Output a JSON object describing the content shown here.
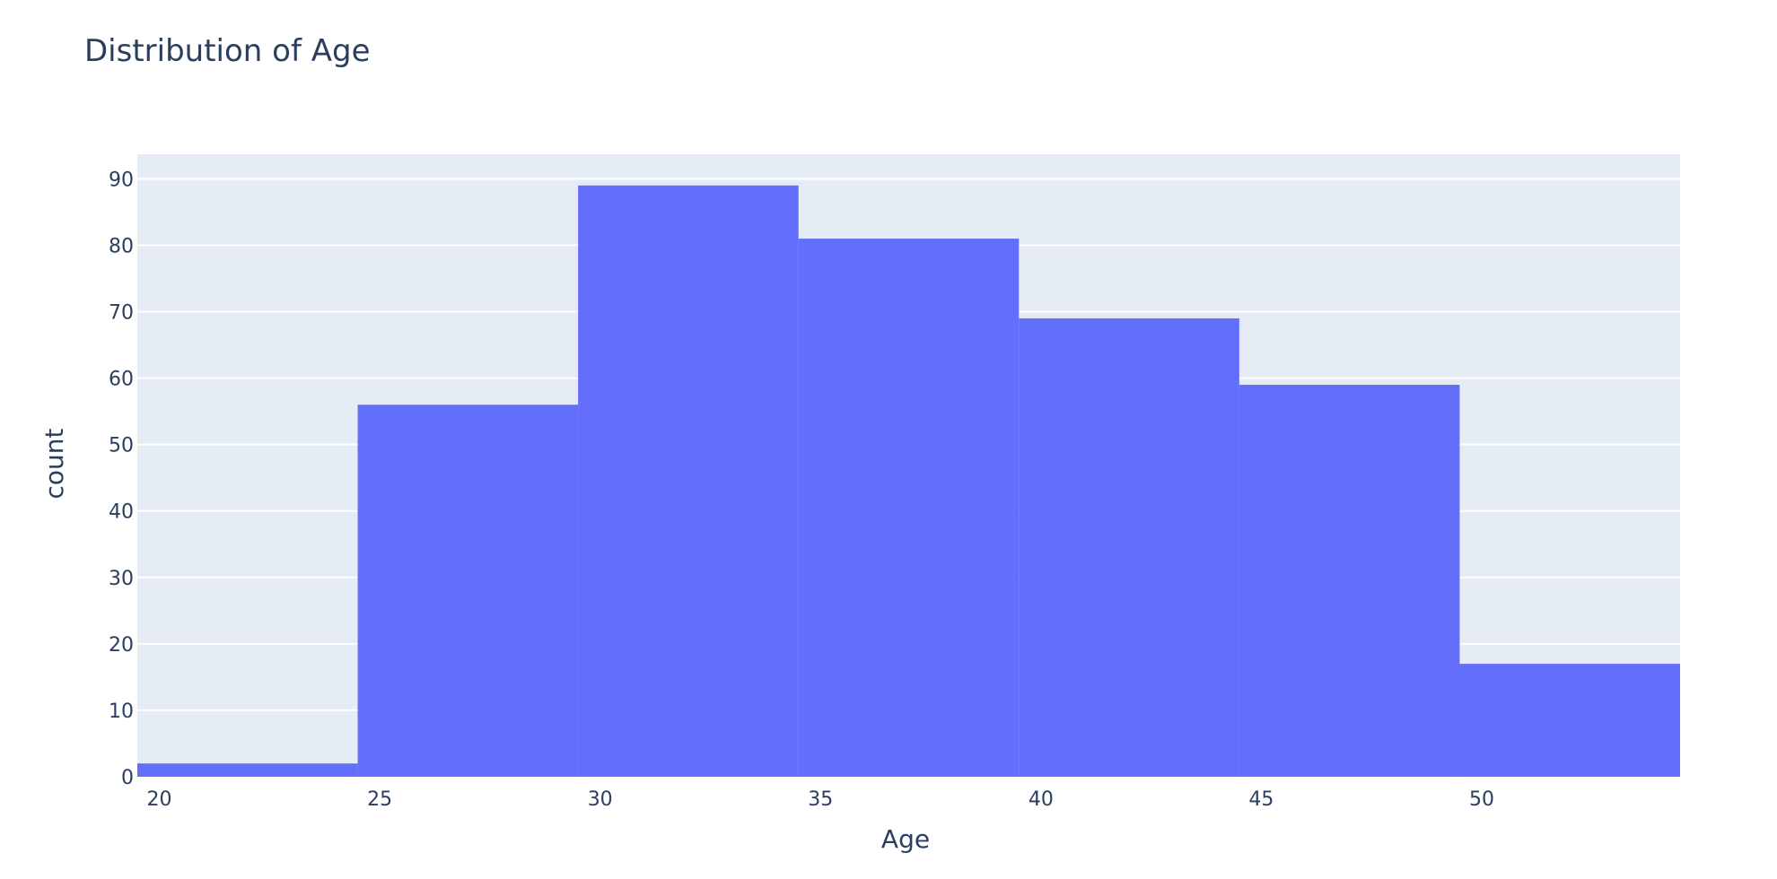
{
  "chart_data": {
    "type": "bar",
    "title": "Distribution of Age",
    "xlabel": "Age",
    "ylabel": "count",
    "bin_edges": [
      19.5,
      24.5,
      29.5,
      34.5,
      39.5,
      44.5,
      49.5,
      54.5
    ],
    "values": [
      2,
      56,
      89,
      81,
      69,
      59,
      17
    ],
    "xlim": [
      19.5,
      54.5
    ],
    "ylim": [
      0,
      93.7
    ],
    "x_ticks": [
      "20",
      "25",
      "30",
      "35",
      "40",
      "45",
      "50"
    ],
    "y_ticks": [
      "0",
      "10",
      "20",
      "30",
      "40",
      "50",
      "60",
      "70",
      "80",
      "90"
    ],
    "grid": true,
    "legend": "none",
    "colors": {
      "bar": "#636efa",
      "plot_bg": "#e5ecf6",
      "grid": "#ffffff",
      "text": "#2a3f5f"
    }
  }
}
